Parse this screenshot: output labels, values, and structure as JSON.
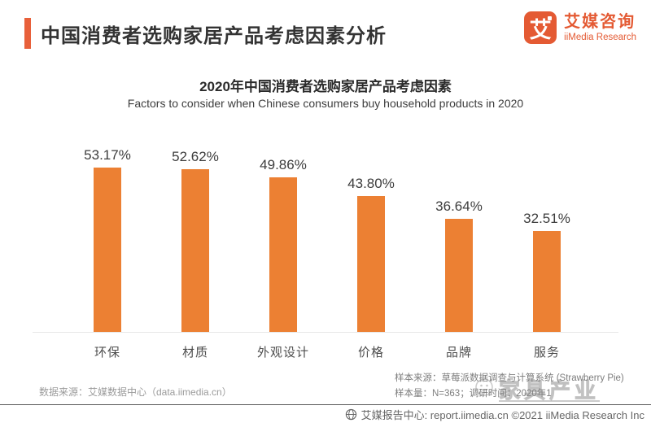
{
  "header": {
    "title": "中国消费者选购家居产品考虑因素分析",
    "logo": {
      "glyph": "艾",
      "brand_cn": "艾媒咨询",
      "brand_en": "iiMedia Research"
    }
  },
  "chart_data": {
    "type": "bar",
    "title": "2020年中国消费者选购家居产品考虑因素",
    "subtitle": "Factors to consider when Chinese consumers buy household products in 2020",
    "categories": [
      "环保",
      "材质",
      "外观设计",
      "价格",
      "品牌",
      "服务"
    ],
    "values": [
      53.17,
      52.62,
      49.86,
      43.8,
      36.64,
      32.51
    ],
    "value_labels": [
      "53.17%",
      "52.62%",
      "49.86%",
      "43.80%",
      "36.64%",
      "32.51%"
    ],
    "unit": "%",
    "ylim": [
      0,
      62
    ],
    "grid": false,
    "legend": "none",
    "bar_color": "#EC8033"
  },
  "notes": {
    "data_source": "数据来源：艾媒数据中心（data.iimedia.cn）",
    "sample_source": "样本来源：草莓派数据调查与计算系统 (Strawberry Pie)",
    "sample_size": "样本量：N=363；调研时间：2020年1"
  },
  "watermark": {
    "text": "家具产业"
  },
  "footer": {
    "text": "艾媒报告中心: report.iimedia.cn  ©2021  iiMedia Research Inc"
  },
  "colors": {
    "accent_orange": "#E8603A",
    "logo_orange": "#E45A33",
    "bar_orange": "#EC8033",
    "title_text": "#333333",
    "note_gray": "#9b9b9b",
    "footer_gray": "#666666"
  }
}
